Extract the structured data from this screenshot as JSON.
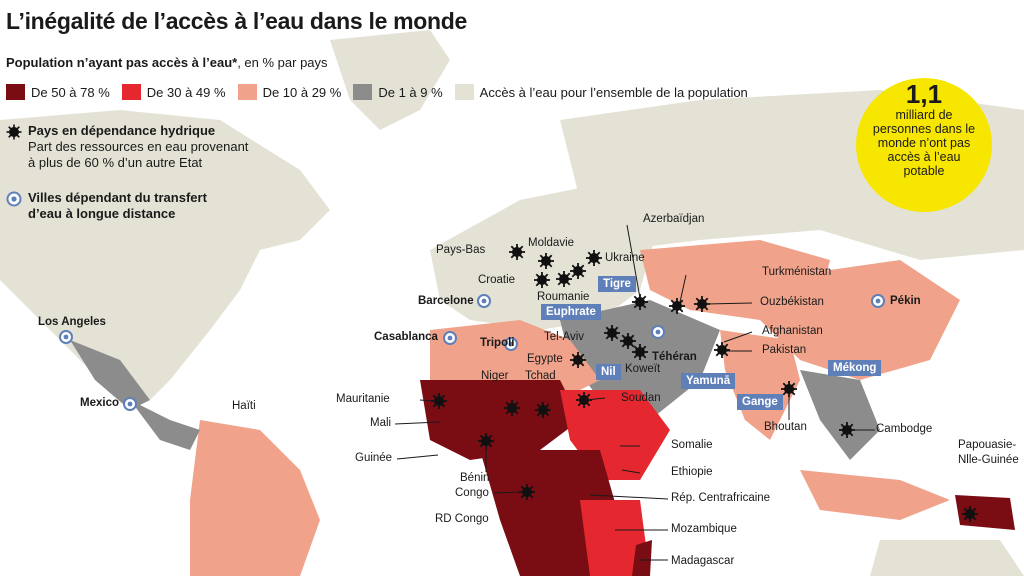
{
  "title": "L’inégalité de l’accès à l’eau dans le monde",
  "subtitle": {
    "bold": "Population n’ayant pas accès à l’eau*",
    "rest": ", en % par pays"
  },
  "legend": [
    {
      "label": "De 50 à 78 %",
      "color": "#7a0d14"
    },
    {
      "label": "De 30 à 49 %",
      "color": "#e5282f"
    },
    {
      "label": "De 10 à 29 %",
      "color": "#f0a38a"
    },
    {
      "label": "De 1 à 9 %",
      "color": "#8c8c8c"
    },
    {
      "label": "Accès à l’eau pour l’ensemble de la population",
      "color": "#e4e2d5"
    }
  ],
  "hydric": {
    "head": "Pays en dépendance hydrique",
    "desc1": "Part des ressources en eau provenant",
    "desc2": "à plus de 60 % d’un autre Etat"
  },
  "cities_legend": {
    "head1": "Villes dépendant du transfert",
    "head2": "d’eau à longue distance"
  },
  "badge": {
    "big": "1,1",
    "small": "milliard de personnes dans le monde n’ont pas accès à l’eau potable"
  },
  "countries": {
    "pays_bas": "Pays-Bas",
    "moldavie": "Moldavie",
    "ukraine": "Ukraine",
    "croatie": "Croatie",
    "roumanie": "Roumanie",
    "azerbaidjan": "Azerbaïdjan",
    "turkmenistan": "Turkménistan",
    "ouzbekistan": "Ouzbékistan",
    "afghanistan": "Afghanistan",
    "pakistan": "Pakistan",
    "tel_aviv": "Tel-Aviv",
    "egypte": "Egypte",
    "koweit": "Koweït",
    "niger": "Niger",
    "tchad": "Tchad",
    "soudan": "Soudan",
    "mauritanie": "Mauritanie",
    "mali": "Mali",
    "haiti": "Haïti",
    "guinee": "Guinée",
    "benin": "Bénin",
    "congo": "Congo",
    "rd_congo": "RD Congo",
    "somalie": "Somalie",
    "ethiopie": "Ethiopie",
    "rep_centrafricaine": "Rép. Centrafricaine",
    "mozambique": "Mozambique",
    "madagascar": "Madagascar",
    "bhoutan": "Bhoutan",
    "cambodge": "Cambodge",
    "papouasie1": "Papouasie-",
    "papouasie2": "Nlle-Guinée"
  },
  "cities": {
    "barcelone": "Barcelone",
    "los_angeles": "Los Angeles",
    "casablanca": "Casablanca",
    "tripoli": "Tripoli",
    "teheran": "Téhéran",
    "mexico": "Mexico",
    "pekin": "Pékin"
  },
  "rivers": {
    "tigre": "Tigre",
    "euphrate": "Euphrate",
    "nil": "Nil",
    "yamuna": "Yamunā",
    "gange": "Gange",
    "mekong": "Mékong"
  }
}
